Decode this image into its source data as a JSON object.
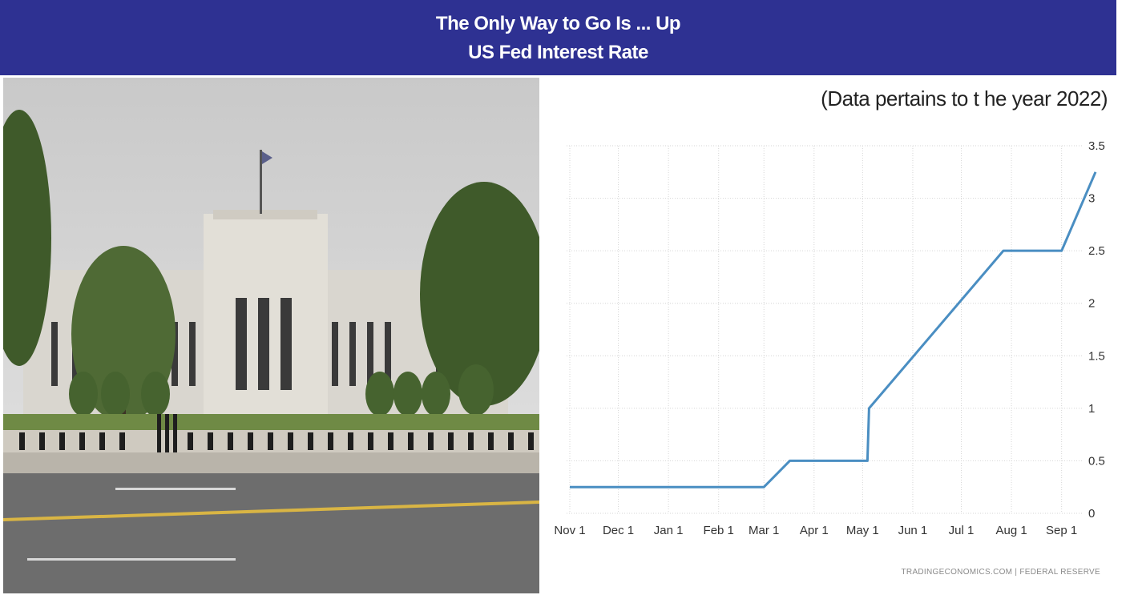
{
  "banner": {
    "title": "The Only Way to Go Is ... Up",
    "subtitle": "US Fed Interest Rate"
  },
  "note": "(Data pertains to t he year 2022)",
  "source": "TRADINGECONOMICS.COM  |  FEDERAL RESERVE",
  "colors": {
    "banner": "#2e3192",
    "line": "#4a8ec2",
    "grid": "#d6d6d6"
  },
  "chart_data": {
    "type": "line",
    "title": "US Fed Interest Rate",
    "x_tick_labels": [
      "Nov 1",
      "Dec 1",
      "Jan 1",
      "Feb 1",
      "Mar 1",
      "Apr 1",
      "May 1",
      "Jun 1",
      "Jul 1",
      "Aug 1",
      "Sep 1"
    ],
    "y_tick_labels": [
      "0",
      "0.5",
      "1",
      "1.5",
      "2",
      "2.5",
      "3",
      "3.5"
    ],
    "ylim": [
      0,
      3.5
    ],
    "grid": true,
    "y_axis_side": "right",
    "series": [
      {
        "x": [
          "Nov 1",
          "Mar 1",
          "Mar 17",
          "May 4",
          "May 5",
          "Jul 27",
          "Sep 1",
          "Sep 22"
        ],
        "values": [
          0.25,
          0.25,
          0.5,
          0.5,
          1.0,
          2.5,
          2.5,
          3.25
        ]
      }
    ]
  }
}
